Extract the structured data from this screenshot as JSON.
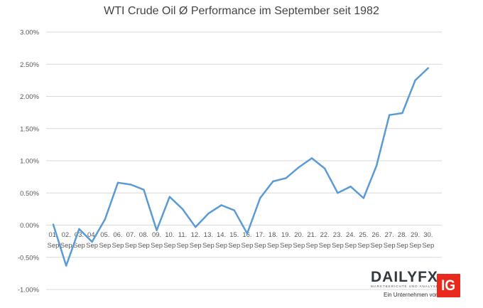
{
  "chart_data": {
    "type": "line",
    "title": "WTI Crude Oil Ø Performance im September seit 1982",
    "xlabel": "",
    "ylabel": "",
    "ylim": [
      -1.0,
      3.0
    ],
    "yticks": [
      3.0,
      2.5,
      2.0,
      1.5,
      1.0,
      0.5,
      0.0,
      -0.5,
      -1.0
    ],
    "ytick_labels": [
      "3.00%",
      "2.50%",
      "2.00%",
      "1.50%",
      "1.00%",
      "0.50%",
      "0.00%",
      "-0.50%",
      "-1.00%"
    ],
    "grid": true,
    "line_color": "#5b9bd5",
    "categories": [
      {
        "day": "01.",
        "month": "Sep"
      },
      {
        "day": "02.",
        "month": "Sep"
      },
      {
        "day": "03.",
        "month": "Sep"
      },
      {
        "day": "04.",
        "month": "Sep"
      },
      {
        "day": "05.",
        "month": "Sep"
      },
      {
        "day": "06.",
        "month": "Sep"
      },
      {
        "day": "07.",
        "month": "Sep"
      },
      {
        "day": "08.",
        "month": "Sep"
      },
      {
        "day": "09.",
        "month": "Sep"
      },
      {
        "day": "10.",
        "month": "Sep"
      },
      {
        "day": "11.",
        "month": "Sep"
      },
      {
        "day": "12.",
        "month": "Sep"
      },
      {
        "day": "13.",
        "month": "Sep"
      },
      {
        "day": "14.",
        "month": "Sep"
      },
      {
        "day": "15.",
        "month": "Sep"
      },
      {
        "day": "16.",
        "month": "Sep"
      },
      {
        "day": "17.",
        "month": "Sep"
      },
      {
        "day": "18.",
        "month": "Sep"
      },
      {
        "day": "19.",
        "month": "Sep"
      },
      {
        "day": "20.",
        "month": "Sep"
      },
      {
        "day": "21.",
        "month": "Sep"
      },
      {
        "day": "22.",
        "month": "Sep"
      },
      {
        "day": "23.",
        "month": "Sep"
      },
      {
        "day": "24.",
        "month": "Sep"
      },
      {
        "day": "25.",
        "month": "Sep"
      },
      {
        "day": "26.",
        "month": "Sep"
      },
      {
        "day": "27.",
        "month": "Sep"
      },
      {
        "day": "28.",
        "month": "Sep"
      },
      {
        "day": "29.",
        "month": "Sep"
      },
      {
        "day": "30.",
        "month": "Sep"
      }
    ],
    "series": [
      {
        "name": "WTI Crude Oil Ø Performance",
        "values": [
          0.01,
          -0.63,
          -0.06,
          -0.26,
          0.09,
          0.66,
          0.63,
          0.55,
          -0.08,
          0.44,
          0.25,
          -0.03,
          0.18,
          0.31,
          0.23,
          -0.13,
          0.42,
          0.68,
          0.73,
          0.9,
          1.04,
          0.88,
          0.5,
          0.6,
          0.42,
          0.92,
          1.71,
          1.74,
          2.25,
          2.44
        ]
      }
    ]
  },
  "branding": {
    "dailyfx_part1": "DAILY",
    "dailyfx_part2": "FX",
    "tagline": "MARKTBERICHTE UND ANALYSEN",
    "ein_unternehmen": "Ein Unternehmen von",
    "ig": "IG"
  }
}
